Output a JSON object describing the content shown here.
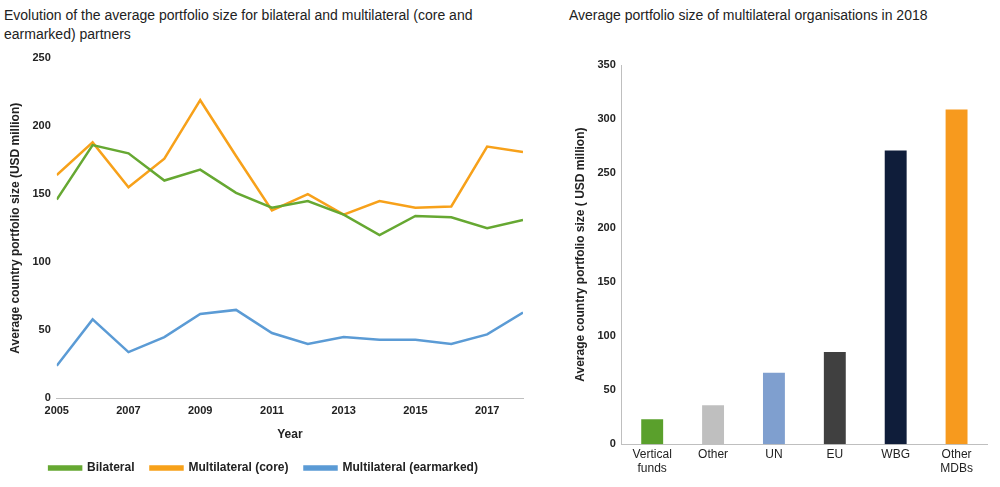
{
  "chart_data": [
    {
      "type": "line",
      "title": "Evolution of the average portfolio size for bilateral and multilateral (core and earmarked) partners",
      "xlabel": "Year",
      "ylabel": "Average country portfolio size (USD million)",
      "x": [
        2005,
        2006,
        2007,
        2008,
        2009,
        2010,
        2011,
        2012,
        2013,
        2014,
        2015,
        2016,
        2017,
        2018
      ],
      "xlim": [
        2005,
        2018
      ],
      "xticks": [
        2005,
        2007,
        2009,
        2011,
        2013,
        2015,
        2017
      ],
      "ylim": [
        0,
        250
      ],
      "yticks": [
        0,
        50,
        100,
        150,
        200,
        250
      ],
      "grid": false,
      "legend": "bottom",
      "series": [
        {
          "name": "Bilateral",
          "color": "#66a832",
          "values": [
            146,
            186,
            180,
            160,
            168,
            151,
            140,
            145,
            135,
            120,
            134,
            133,
            125,
            131
          ]
        },
        {
          "name": "Multilateral (core)",
          "color": "#f7a11a",
          "values": [
            164,
            188,
            155,
            176,
            219,
            178,
            138,
            150,
            135,
            145,
            140,
            141,
            185,
            181
          ]
        },
        {
          "name": "Multilateral (earmarked)",
          "color": "#5b9bd5",
          "values": [
            24,
            58,
            34,
            45,
            62,
            65,
            48,
            40,
            45,
            43,
            43,
            40,
            47,
            63
          ]
        }
      ]
    },
    {
      "type": "bar",
      "title": "Average portfolio size of multilateral organisations in 2018",
      "ylabel": "Average country portfolio size ( USD million)",
      "categories": [
        "Vertical funds",
        "Other",
        "UN",
        "EU",
        "WBG",
        "Other MDBs"
      ],
      "values": [
        23,
        36,
        66,
        85,
        271,
        309
      ],
      "colors": [
        "#5aa02c",
        "#bfbfbf",
        "#7f9fcf",
        "#404040",
        "#0f1d3a",
        "#f79a1e"
      ],
      "ylim": [
        0,
        350
      ],
      "yticks": [
        0,
        50,
        100,
        150,
        200,
        250,
        300,
        350
      ],
      "grid": false
    }
  ]
}
